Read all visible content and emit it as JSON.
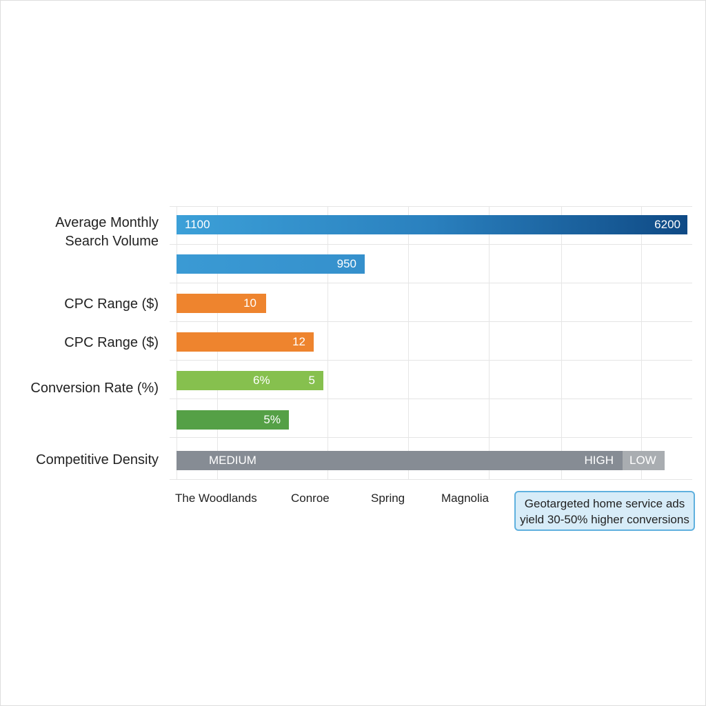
{
  "chart_data": {
    "type": "bar",
    "orientation": "horizontal",
    "row_labels": [
      "Average Monthly\nSearch Volume",
      "",
      "CPC Range ($)",
      "CPC Range ($)",
      "Conversion Rate (%)",
      "",
      "Competitive Density"
    ],
    "bars": [
      {
        "labels": [
          "1100",
          "6200"
        ],
        "color": "#2a7fc0"
      },
      {
        "labels": [
          "950"
        ],
        "color": "#3a96d0"
      },
      {
        "labels": [
          "10"
        ],
        "color": "#ef8430"
      },
      {
        "labels": [
          "12"
        ],
        "color": "#ef8430"
      },
      {
        "labels": [
          "6%",
          "5"
        ],
        "color": "#86c04e"
      },
      {
        "labels": [
          "5%"
        ],
        "color": "#55a046"
      },
      {
        "labels": [
          "MEDIUM",
          "HIGH",
          "LOW"
        ],
        "color": "#868c94"
      }
    ],
    "categories": [
      "The Woodlands",
      "Conroe",
      "Spring",
      "Magnolia"
    ],
    "annotation": "Geotargeted home service ads yield 30-50% higher conversions",
    "grid": true
  }
}
